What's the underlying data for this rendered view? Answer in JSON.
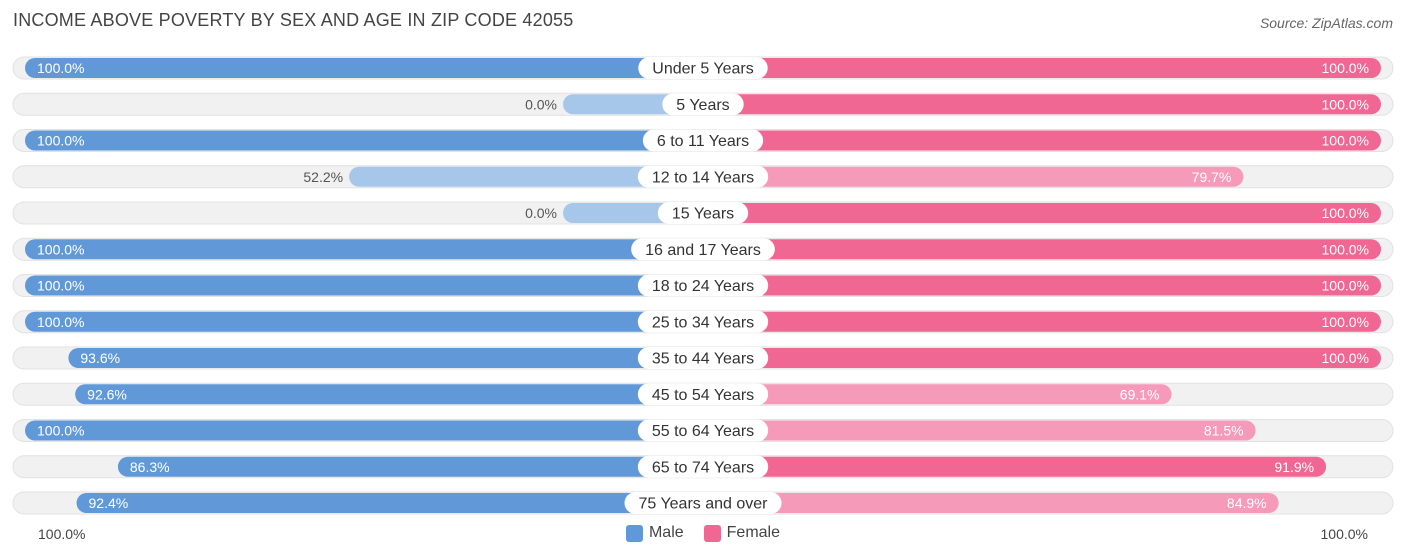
{
  "header": {
    "title": "INCOME ABOVE POVERTY BY SEX AND AGE IN ZIP CODE 42055",
    "source": "Source: ZipAtlas.com"
  },
  "colors": {
    "male_strong": "#6199d8",
    "male_light": "#a7c7ea",
    "female_strong": "#f06794",
    "female_light": "#f59ab8",
    "track": "#f1f1f1"
  },
  "chart_data": {
    "type": "bar",
    "orientation": "horizontal-diverging",
    "categories": [
      "Under 5 Years",
      "5 Years",
      "6 to 11 Years",
      "12 to 14 Years",
      "15 Years",
      "16 and 17 Years",
      "18 to 24 Years",
      "25 to 34 Years",
      "35 to 44 Years",
      "45 to 54 Years",
      "55 to 64 Years",
      "65 to 74 Years",
      "75 Years and over"
    ],
    "series": [
      {
        "name": "Male",
        "values": [
          100.0,
          0.0,
          100.0,
          52.2,
          0.0,
          100.0,
          100.0,
          100.0,
          93.6,
          92.6,
          100.0,
          86.3,
          92.4
        ]
      },
      {
        "name": "Female",
        "values": [
          100.0,
          100.0,
          100.0,
          79.7,
          100.0,
          100.0,
          100.0,
          100.0,
          100.0,
          69.1,
          81.5,
          91.9,
          84.9
        ]
      }
    ],
    "value_labels": {
      "male": [
        "100.0%",
        "0.0%",
        "100.0%",
        "52.2%",
        "0.0%",
        "100.0%",
        "100.0%",
        "100.0%",
        "93.6%",
        "92.6%",
        "100.0%",
        "86.3%",
        "92.4%"
      ],
      "female": [
        "100.0%",
        "100.0%",
        "100.0%",
        "79.7%",
        "100.0%",
        "100.0%",
        "100.0%",
        "100.0%",
        "100.0%",
        "69.1%",
        "81.5%",
        "91.9%",
        "84.9%"
      ]
    },
    "xlim": [
      -100,
      100
    ],
    "axis_labels": {
      "left": "100.0%",
      "right": "100.0%"
    },
    "legend": {
      "position": "bottom-center",
      "entries": [
        "Male",
        "Female"
      ]
    }
  }
}
